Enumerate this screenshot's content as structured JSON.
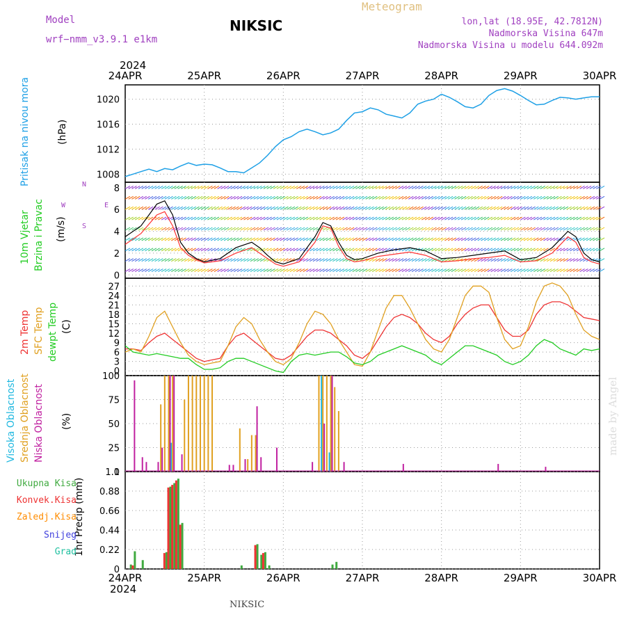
{
  "header": {
    "model_label": "Model",
    "model_name": "wrf−nmm_v3.9.1  e1km",
    "station": "NIKSIC",
    "meteogram": "Meteogram",
    "coords": "lon,lat (18.95E, 42.7812N)",
    "elevation": "Nadmorska Visina 647m",
    "elevation_model": "Nadmorska Visina u modelu 644.092m",
    "year": "2024",
    "footer_station": "NIKSIC",
    "watermark": "made by Angel"
  },
  "colors": {
    "pressure": "#1ea0e6",
    "wind_label": "#22cc22",
    "wind_speed": "#000000",
    "gust": "#ff3333",
    "t2m": "#ee3333",
    "tsfc": "#e0a020",
    "tdew": "#22cc22",
    "high_cloud": "#20b8e0",
    "mid_cloud": "#e0a020",
    "low_cloud": "#c020a0",
    "total_precip": "#40aa40",
    "conv_precip": "#ee3333",
    "frozen_precip": "#ff8c00",
    "snow": "#4040dd",
    "hail": "#20c0a0",
    "purple_text": "#a040c0"
  },
  "chart_data": [
    {
      "type": "line",
      "panel": "pressure",
      "ylabel": "Pritisak na nivou mora",
      "units": "(hPa)",
      "x_ticks": [
        "24APR",
        "25APR",
        "26APR",
        "27APR",
        "28APR",
        "29APR",
        "30APR"
      ],
      "y_ticks": [
        1008,
        1012,
        1016,
        1020
      ],
      "ylim": [
        1006.7,
        1022.3
      ],
      "grid": true,
      "series": [
        {
          "x": [
            0,
            0.1,
            0.2,
            0.3,
            0.4,
            0.5,
            0.6,
            0.7,
            0.8,
            0.9,
            1.0,
            1.1,
            1.2,
            1.3,
            1.4,
            1.5,
            1.6,
            1.7,
            1.8,
            1.9,
            2.0,
            2.1,
            2.2,
            2.3,
            2.4,
            2.5,
            2.6,
            2.7,
            2.8,
            2.9,
            3.0,
            3.1,
            3.2,
            3.3,
            3.4,
            3.5,
            3.6,
            3.7,
            3.8,
            3.9,
            4.0,
            4.1,
            4.2,
            4.3,
            4.4,
            4.5,
            4.6,
            4.7,
            4.8,
            4.9,
            5.0,
            5.1,
            5.2,
            5.3,
            5.4,
            5.5,
            5.6,
            5.7,
            5.8,
            5.9,
            6.0
          ],
          "values": [
            1007.6,
            1008.0,
            1008.4,
            1008.8,
            1008.4,
            1008.9,
            1008.7,
            1009.3,
            1009.8,
            1009.4,
            1009.6,
            1009.5,
            1009.0,
            1008.4,
            1008.4,
            1008.2,
            1009.0,
            1009.8,
            1011.0,
            1012.4,
            1013.5,
            1014.0,
            1014.8,
            1015.2,
            1014.8,
            1014.3,
            1014.6,
            1015.2,
            1016.6,
            1017.8,
            1018.0,
            1018.6,
            1018.3,
            1017.6,
            1017.3,
            1017.0,
            1017.8,
            1019.2,
            1019.7,
            1020.0,
            1020.8,
            1020.3,
            1019.6,
            1018.8,
            1018.6,
            1019.2,
            1020.6,
            1021.4,
            1021.7,
            1021.3,
            1020.6,
            1019.8,
            1019.1,
            1019.2,
            1019.8,
            1020.3,
            1020.2,
            1020.0,
            1020.2,
            1020.4,
            1020.4
          ]
        }
      ]
    },
    {
      "type": "line",
      "panel": "wind",
      "ylabel_1": "10m Vjetar",
      "ylabel_2": "Brzina i Pravac",
      "units": "(m/s)",
      "compass": "N,W,E,S",
      "x_ticks": [
        "24APR",
        "25APR",
        "26APR",
        "27APR",
        "28APR",
        "29APR",
        "30APR"
      ],
      "y_ticks": [
        0,
        2,
        4,
        6,
        8
      ],
      "ylim": [
        -0.3,
        8.5
      ],
      "grid": true,
      "series": [
        {
          "name": "speed",
          "x": [
            0,
            0.2,
            0.4,
            0.5,
            0.6,
            0.7,
            0.8,
            0.9,
            1.0,
            1.2,
            1.4,
            1.6,
            1.7,
            1.8,
            1.9,
            2.0,
            2.2,
            2.4,
            2.5,
            2.6,
            2.7,
            2.8,
            2.9,
            3.0,
            3.2,
            3.4,
            3.6,
            3.8,
            4.0,
            4.2,
            4.4,
            4.6,
            4.8,
            5.0,
            5.2,
            5.4,
            5.6,
            5.7,
            5.8,
            5.9,
            6.0
          ],
          "values": [
            3.5,
            4.5,
            6.5,
            6.8,
            5.5,
            3.0,
            2.0,
            1.5,
            1.2,
            1.5,
            2.5,
            3.0,
            2.5,
            1.8,
            1.2,
            1.0,
            1.5,
            3.5,
            4.8,
            4.5,
            3.0,
            1.8,
            1.4,
            1.5,
            2.0,
            2.3,
            2.5,
            2.2,
            1.5,
            1.6,
            1.8,
            2.0,
            2.2,
            1.4,
            1.6,
            2.5,
            4.0,
            3.5,
            2.0,
            1.4,
            1.2
          ]
        },
        {
          "name": "gust",
          "x": [
            0,
            0.2,
            0.4,
            0.5,
            0.6,
            0.7,
            0.8,
            0.9,
            1.0,
            1.2,
            1.4,
            1.6,
            1.7,
            1.8,
            1.9,
            2.0,
            2.2,
            2.4,
            2.5,
            2.6,
            2.7,
            2.8,
            2.9,
            3.0,
            3.2,
            3.4,
            3.6,
            3.8,
            4.0,
            4.2,
            4.4,
            4.6,
            4.8,
            5.0,
            5.2,
            5.4,
            5.6,
            5.7,
            5.8,
            5.9,
            6.0
          ],
          "values": [
            2.8,
            3.8,
            5.5,
            5.8,
            4.5,
            2.5,
            1.8,
            1.4,
            1.1,
            1.3,
            2.0,
            2.5,
            2.0,
            1.5,
            1.0,
            0.8,
            1.2,
            3.0,
            4.5,
            4.3,
            2.6,
            1.5,
            1.2,
            1.3,
            1.7,
            1.9,
            2.1,
            1.8,
            1.2,
            1.3,
            1.5,
            1.6,
            1.8,
            1.2,
            1.3,
            2.0,
            3.5,
            3.0,
            1.6,
            1.2,
            1.0
          ]
        }
      ]
    },
    {
      "type": "line",
      "panel": "temperature",
      "ylabel_1": "2m Temp",
      "ylabel_2": "SFC Temp",
      "ylabel_3": "dewpt Temp",
      "units": "(C)",
      "x_ticks": [
        "24APR",
        "25APR",
        "26APR",
        "27APR",
        "28APR",
        "29APR",
        "30APR"
      ],
      "y_ticks": [
        0,
        3,
        6,
        9,
        12,
        15,
        18,
        21,
        24,
        27
      ],
      "ylim": [
        -1.5,
        29.5
      ],
      "grid": true,
      "x": [
        0,
        0.1,
        0.2,
        0.3,
        0.4,
        0.5,
        0.6,
        0.7,
        0.8,
        0.9,
        1.0,
        1.1,
        1.2,
        1.3,
        1.4,
        1.5,
        1.6,
        1.7,
        1.8,
        1.9,
        2.0,
        2.1,
        2.2,
        2.3,
        2.4,
        2.5,
        2.6,
        2.7,
        2.8,
        2.9,
        3.0,
        3.1,
        3.2,
        3.3,
        3.4,
        3.5,
        3.6,
        3.7,
        3.8,
        3.9,
        4.0,
        4.1,
        4.2,
        4.3,
        4.4,
        4.5,
        4.6,
        4.7,
        4.8,
        4.9,
        5.0,
        5.1,
        5.2,
        5.3,
        5.4,
        5.5,
        5.6,
        5.7,
        5.8,
        5.9,
        6.0
      ],
      "series": [
        {
          "name": "2m Temp",
          "values": [
            7,
            7,
            6.5,
            9,
            11,
            12,
            10,
            8,
            6,
            4,
            3,
            3.5,
            4,
            8,
            11,
            12,
            10,
            8,
            6,
            4,
            3.5,
            5,
            8,
            11,
            13,
            13,
            12,
            10,
            8,
            5,
            4,
            6,
            10,
            14,
            17,
            18,
            17,
            15,
            12,
            10,
            9,
            11,
            15,
            18,
            20,
            21,
            21,
            17,
            13,
            11,
            11,
            13,
            18,
            21,
            22,
            22,
            21,
            19,
            17,
            16.5,
            16
          ]
        },
        {
          "name": "SFC Temp",
          "values": [
            6,
            7,
            6,
            11,
            17,
            19,
            14,
            9,
            5,
            3,
            2,
            2.5,
            3,
            8,
            14,
            17,
            15,
            10,
            6,
            3,
            2,
            4,
            9,
            15,
            19,
            18,
            15,
            10,
            6,
            2,
            1.5,
            6,
            13,
            20,
            24,
            24,
            20,
            15,
            10,
            7,
            6,
            10,
            17,
            24,
            27,
            27,
            25,
            17,
            10,
            7,
            8,
            14,
            22,
            27,
            28,
            27,
            24,
            18,
            13,
            11,
            10
          ]
        },
        {
          "name": "dewpt Temp",
          "values": [
            8,
            6,
            5.5,
            5,
            5.5,
            5,
            4.5,
            4,
            4,
            2,
            0.5,
            0.5,
            1,
            3,
            4,
            4,
            3,
            2,
            1,
            0,
            -0.5,
            3,
            5,
            5.5,
            5,
            5.5,
            6,
            6,
            4.5,
            2.5,
            2,
            3,
            5,
            6,
            7,
            8,
            7,
            6,
            5,
            3,
            2,
            4,
            6,
            8,
            8,
            7,
            6,
            5,
            3,
            2,
            3,
            5,
            8,
            10,
            9,
            7,
            6,
            5,
            7,
            6.5,
            7
          ]
        }
      ]
    },
    {
      "type": "bar",
      "panel": "cloud",
      "ylabel_1": "Visoka Oblacnost",
      "ylabel_2": "Srednja Oblacnost",
      "ylabel_3": "Niska Oblacnost",
      "units": "(%)",
      "x_ticks": [
        "24APR",
        "25APR",
        "26APR",
        "27APR",
        "28APR",
        "29APR",
        "30APR"
      ],
      "y_ticks": [
        0,
        25,
        50,
        75,
        100
      ],
      "ylim": [
        0,
        100
      ],
      "grid": true,
      "series": [
        {
          "name": "high",
          "x": [
            0.6,
            2.5,
            2.6
          ],
          "values": [
            30,
            100,
            20
          ]
        },
        {
          "name": "mid",
          "x": [
            0.45,
            0.5,
            0.55,
            0.6,
            0.75,
            0.8,
            0.85,
            0.9,
            0.95,
            1.0,
            1.05,
            1.1,
            1.45,
            1.55,
            1.6,
            1.65,
            2.45,
            2.5,
            2.55,
            2.6,
            2.65,
            2.7
          ],
          "values": [
            70,
            100,
            100,
            100,
            75,
            100,
            100,
            100,
            100,
            100,
            100,
            100,
            45,
            13,
            38,
            38,
            100,
            100,
            100,
            100,
            88,
            63
          ]
        },
        {
          "name": "low",
          "x": [
            0.1,
            0.2,
            0.25,
            0.4,
            0.45,
            0.55,
            0.6,
            0.7,
            1.3,
            1.35,
            1.5,
            1.65,
            1.7,
            1.9,
            2.35,
            2.5,
            2.6,
            2.75,
            3.5,
            4.7,
            5.3
          ],
          "values": [
            95,
            15,
            10,
            10,
            25,
            100,
            100,
            18,
            7,
            7,
            13,
            68,
            15,
            25,
            10,
            50,
            100,
            10,
            8,
            8,
            5
          ]
        }
      ]
    },
    {
      "type": "bar",
      "panel": "precip",
      "ylabel": "1hr Precip (mm)",
      "legend": [
        "Ukupna Kisa",
        "Konvek.Kisa",
        "Zaledj.Kisa",
        "Snijeg",
        "Grad"
      ],
      "x_ticks": [
        "24APR",
        "25APR",
        "26APR",
        "27APR",
        "28APR",
        "29APR",
        "30APR"
      ],
      "y_ticks": [
        0,
        0.22,
        0.44,
        0.66,
        0.88,
        1.1
      ],
      "ylim": [
        0,
        1.1
      ],
      "grid": true,
      "series": [
        {
          "name": "Ukupna Kisa",
          "x": [
            0.05,
            0.1,
            0.2,
            0.5,
            0.55,
            0.6,
            0.65,
            0.7,
            1.45,
            1.65,
            1.7,
            1.75,
            1.8,
            2.6,
            2.65
          ],
          "values": [
            0.05,
            0.2,
            0.1,
            0.19,
            0.93,
            0.97,
            1.02,
            0.52,
            0.04,
            0.28,
            0.16,
            0.19,
            0.04,
            0.05,
            0.08
          ]
        },
        {
          "name": "Konvek.Kisa",
          "x": [
            0.1,
            0.5,
            0.55,
            0.6,
            0.65,
            0.7,
            1.65,
            1.75
          ],
          "values": [
            0.04,
            0.18,
            0.92,
            0.95,
            1.0,
            0.5,
            0.27,
            0.18
          ]
        }
      ]
    }
  ]
}
